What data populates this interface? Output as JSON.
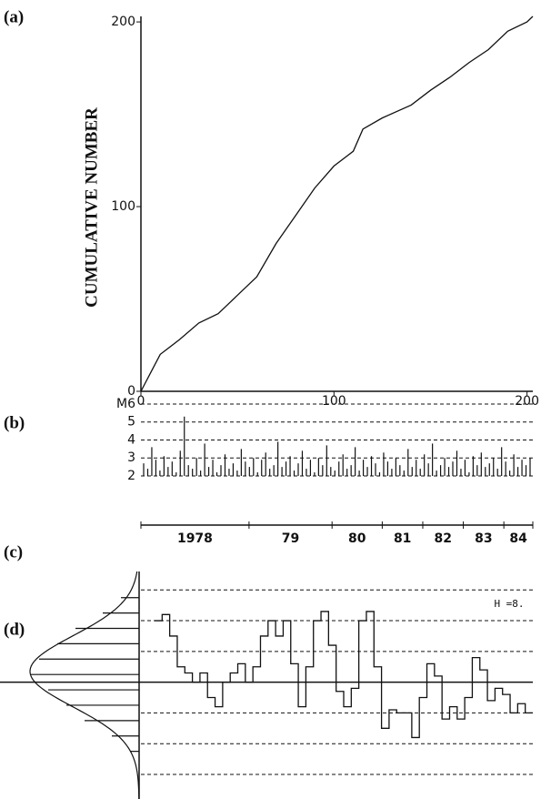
{
  "chart_data": [
    {
      "type": "line",
      "panel": "(a)",
      "y_label": "CUMULATIVE NUMBER",
      "x": [
        0,
        5,
        10,
        20,
        30,
        40,
        50,
        60,
        70,
        80,
        90,
        100,
        110,
        115,
        125,
        140,
        150,
        160,
        170,
        180,
        190,
        200,
        203
      ],
      "y": [
        0,
        10,
        20,
        28,
        37,
        42,
        52,
        62,
        80,
        95,
        110,
        122,
        130,
        142,
        148,
        155,
        163,
        170,
        178,
        185,
        195,
        200,
        203
      ],
      "xlim": [
        0,
        203
      ],
      "ylim": [
        0,
        203
      ],
      "xticks": [
        0,
        100,
        200
      ],
      "yticks": [
        0,
        100,
        200
      ],
      "color": "#111"
    },
    {
      "type": "spike",
      "panel": "(b)",
      "ylim": [
        2,
        6.2
      ],
      "yticks": [
        {
          "value": 6,
          "label": "M6"
        },
        5,
        4,
        3,
        2
      ],
      "values": [
        2.7,
        2.4,
        3.6,
        2.9,
        2.3,
        3.1,
        2.5,
        2.8,
        2.2,
        3.4,
        5.3,
        2.6,
        2.4,
        3.0,
        2.3,
        3.8,
        2.5,
        2.9,
        2.2,
        2.6,
        3.2,
        2.4,
        2.7,
        2.3,
        3.5,
        2.8,
        2.5,
        3.0,
        2.2,
        2.9,
        3.3,
        2.4,
        2.6,
        3.9,
        2.5,
        2.8,
        3.1,
        2.3,
        2.7,
        3.4,
        2.4,
        2.9,
        2.2,
        3.0,
        2.6,
        3.7,
        2.5,
        2.3,
        2.8,
        3.2,
        2.4,
        2.6,
        3.6,
        2.3,
        2.9,
        2.5,
        3.1,
        2.7,
        2.2,
        3.3,
        2.8,
        2.4,
        3.0,
        2.6,
        2.3,
        3.5,
        2.5,
        2.9,
        2.4,
        3.2,
        2.7,
        3.8,
        2.3,
        2.6,
        3.0,
        2.5,
        2.8,
        3.4,
        2.4,
        2.9,
        2.2,
        3.1,
        2.6,
        3.3,
        2.5,
        2.7,
        3.0,
        2.4,
        3.6,
        2.8,
        2.3,
        3.2,
        2.5,
        2.9,
        2.6,
        3.0
      ],
      "color": "#111"
    },
    {
      "type": "time_axis",
      "panel": "(c)",
      "categories": [
        "1978",
        "79",
        "80",
        "81",
        "82",
        "83",
        "84"
      ],
      "bins": [
        0,
        56,
        99,
        125,
        146,
        167,
        188,
        203
      ],
      "xlim": [
        0,
        203
      ]
    },
    {
      "type": "step",
      "panel": "(d)",
      "annotation": "H =8.",
      "values": [
        2.0,
        2.2,
        1.5,
        0.5,
        0.3,
        0,
        0.3,
        -0.5,
        -0.8,
        0,
        0.3,
        0.6,
        0,
        0.5,
        1.5,
        2.0,
        1.5,
        2.0,
        0.6,
        -0.8,
        0.5,
        2.0,
        2.3,
        1.2,
        -0.3,
        -0.8,
        -0.2,
        2.0,
        2.3,
        0.5,
        -1.5,
        -0.9,
        -1.0,
        -1.0,
        -1.8,
        -0.5,
        0.6,
        0.2,
        -1.2,
        -0.8,
        -1.2,
        -0.5,
        0.8,
        0.4,
        -0.6,
        -0.2,
        -0.4,
        -1.0,
        -0.7,
        -1.0
      ],
      "ylim": [
        -3.8,
        3.6
      ],
      "levels": [
        -3,
        -2,
        -1,
        0,
        1,
        2,
        3
      ],
      "hist_bins": [
        -2.5,
        -2,
        -1.5,
        -1,
        -0.5,
        0,
        0.5,
        1,
        1.5,
        2,
        2.5,
        3
      ],
      "hist_counts": [
        1,
        3,
        6,
        8,
        10,
        12,
        11,
        9,
        7,
        4,
        2
      ],
      "color": "#111"
    }
  ]
}
